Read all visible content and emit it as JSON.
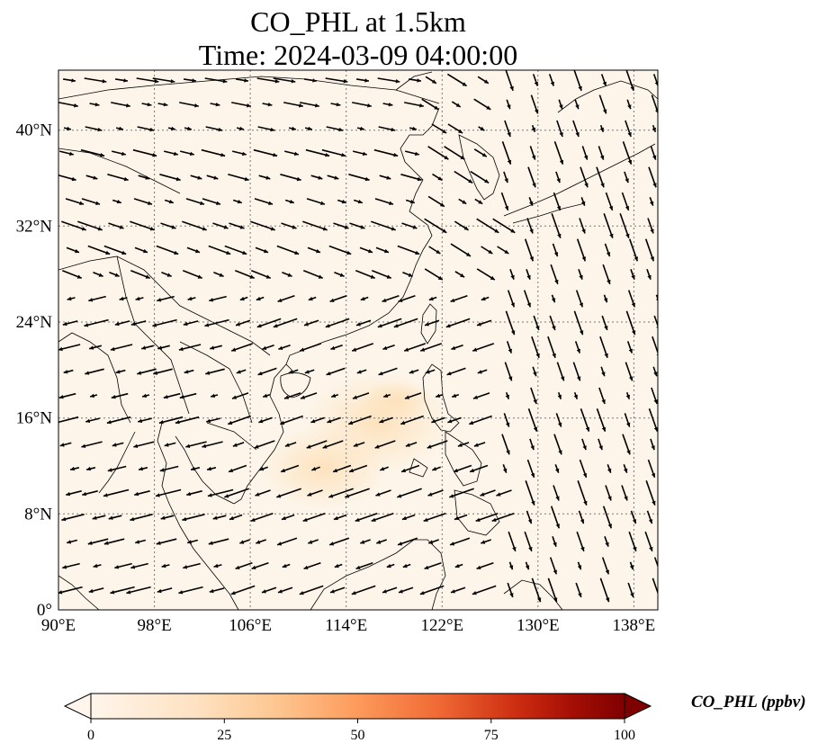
{
  "title": {
    "line1": "CO_PHL at 1.5km",
    "line2": "Time: 2024-03-09 04:00:00"
  },
  "map": {
    "variable": "CO_PHL",
    "level": "1.5km",
    "extent": {
      "lon": [
        90,
        140
      ],
      "lat": [
        0,
        45
      ]
    },
    "lon_ticks": [
      "90°E",
      "98°E",
      "106°E",
      "114°E",
      "122°E",
      "130°E",
      "138°E"
    ],
    "lat_ticks": [
      "0°",
      "8°N",
      "16°N",
      "24°N",
      "32°N",
      "40°N"
    ],
    "gridlines": "dotted grey",
    "background_color": "#fdf5e9",
    "plume_color": "#fde2bd",
    "coastline_color": "#000000",
    "wind_vectors": "black arrows"
  },
  "colorbar": {
    "label": "CO_PHL (ppbv)",
    "ticks": [
      "0",
      "25",
      "50",
      "75",
      "100"
    ],
    "min": 0,
    "max": 100,
    "extend": "both",
    "colormap": [
      "#fff5eb",
      "#fdd9a8",
      "#fdb47a",
      "#f67a4a",
      "#d7301f",
      "#a50000",
      "#7f0000"
    ]
  }
}
